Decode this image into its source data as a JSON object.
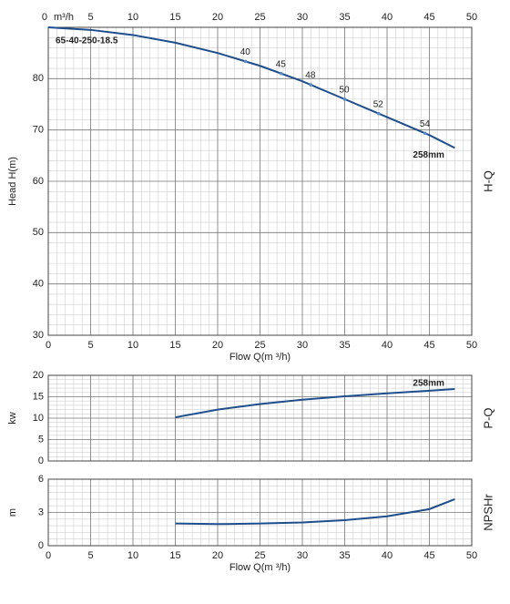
{
  "chart_data": [
    {
      "type": "line",
      "model_label": "65-40-250-18.5",
      "y_label": "Head H(m)",
      "side_label": "H-Q",
      "x_label": "Flow Q(m ³/h)",
      "x_unit_label": "m³/h",
      "xtick_labels": "both",
      "x": [
        0,
        5,
        10,
        15,
        20,
        25,
        30,
        35,
        40,
        45,
        48
      ],
      "series": [
        {
          "name": "258mm",
          "color": "#1f4e8c",
          "values": [
            90,
            89.5,
            88.5,
            87,
            85,
            82.5,
            79.5,
            76,
            72.5,
            69,
            66.5
          ]
        }
      ],
      "efficiency": {
        "x": [
          23.3,
          27.5,
          31,
          35,
          39,
          44.5
        ],
        "values": [
          40,
          45,
          48,
          50,
          52,
          54
        ]
      },
      "xlim": [
        0,
        50
      ],
      "xticks": [
        0,
        5,
        10,
        15,
        20,
        25,
        30,
        35,
        40,
        45,
        50
      ],
      "ylim": [
        30,
        90
      ],
      "yticks": [
        30,
        40,
        50,
        60,
        70,
        80
      ],
      "grid": true
    },
    {
      "type": "line",
      "y_label": "kw",
      "side_label": "P-Q",
      "xtick_labels": "none",
      "x": [
        15,
        20,
        25,
        30,
        35,
        40,
        45,
        48
      ],
      "series": [
        {
          "name": "258mm",
          "color": "#1f4e8c",
          "values": [
            10.2,
            12,
            13.3,
            14.3,
            15.1,
            15.8,
            16.4,
            16.8
          ]
        }
      ],
      "xlim": [
        0,
        50
      ],
      "xticks": [
        0,
        5,
        10,
        15,
        20,
        25,
        30,
        35,
        40,
        45,
        50
      ],
      "ylim": [
        0,
        20
      ],
      "yticks": [
        0,
        5,
        10,
        15,
        20
      ],
      "grid": true
    },
    {
      "type": "line",
      "y_label": "m",
      "side_label": "NPSHr",
      "x_label": "Flow Q(m ³/h)",
      "xtick_labels": "bottom",
      "x": [
        15,
        20,
        25,
        30,
        35,
        40,
        45,
        48
      ],
      "series": [
        {
          "color": "#1f4e8c",
          "values": [
            2.0,
            1.95,
            2.0,
            2.1,
            2.3,
            2.65,
            3.3,
            4.2
          ]
        }
      ],
      "xlim": [
        0,
        50
      ],
      "xticks": [
        0,
        5,
        10,
        15,
        20,
        25,
        30,
        35,
        40,
        45,
        50
      ],
      "ylim": [
        0,
        6
      ],
      "yticks": [
        0,
        3,
        6
      ],
      "grid": true
    }
  ]
}
